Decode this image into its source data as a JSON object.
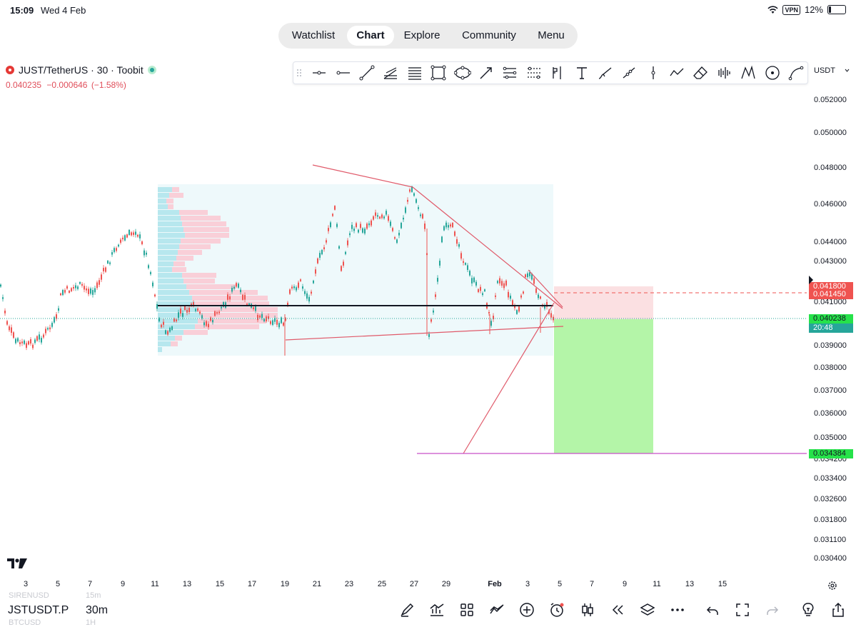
{
  "status_bar": {
    "time": "15:09",
    "date": "Wed 4 Feb",
    "vpn": "VPN",
    "battery": "12%"
  },
  "nav": {
    "tabs": [
      "Watchlist",
      "Chart",
      "Explore",
      "Community",
      "Menu"
    ],
    "active": "Chart"
  },
  "symbol": {
    "title": "JUST/TetherUS · 30 · Toobit",
    "last_price": "0.040235",
    "change": "−0.000646",
    "change_pct": "(−1.58%)"
  },
  "currency": {
    "selected": "USDT"
  },
  "price_axis": {
    "labels": [
      "0.052000",
      "0.050000",
      "0.048000",
      "0.046000",
      "0.044000",
      "0.043000",
      "0.041000",
      "0.039000",
      "0.038000",
      "0.037000",
      "0.036000",
      "0.035000",
      "0.034200",
      "0.033400",
      "0.032600",
      "0.031800",
      "0.031100",
      "0.030400"
    ]
  },
  "price_tags": {
    "tag_a": "0.041800",
    "tag_b": "0.041450",
    "current": "0.040238",
    "countdown": "20:48",
    "target": "0.034384"
  },
  "time_axis": {
    "labels": [
      "3",
      "5",
      "7",
      "9",
      "11",
      "13",
      "15",
      "17",
      "19",
      "21",
      "23",
      "25",
      "27",
      "29",
      "Feb",
      "3",
      "5",
      "7",
      "9",
      "11",
      "13",
      "15"
    ]
  },
  "bottom": {
    "ticker": "JSTUSDT.P",
    "interval": "30m",
    "ghost_ticker_top": "SIRENUSD",
    "ghost_interval_top": "15m",
    "ghost_ticker_bottom": "BTCUSD",
    "ghost_interval_bottom": "1H"
  },
  "colors": {
    "up": "#26a69a",
    "down": "#ef5350",
    "profit_zone": "#b4f5a8",
    "loss_zone": "#fbe0e2",
    "volume_profile": "#eefafc",
    "trendline": "#e05a6a",
    "target_line": "#c850c8"
  }
}
